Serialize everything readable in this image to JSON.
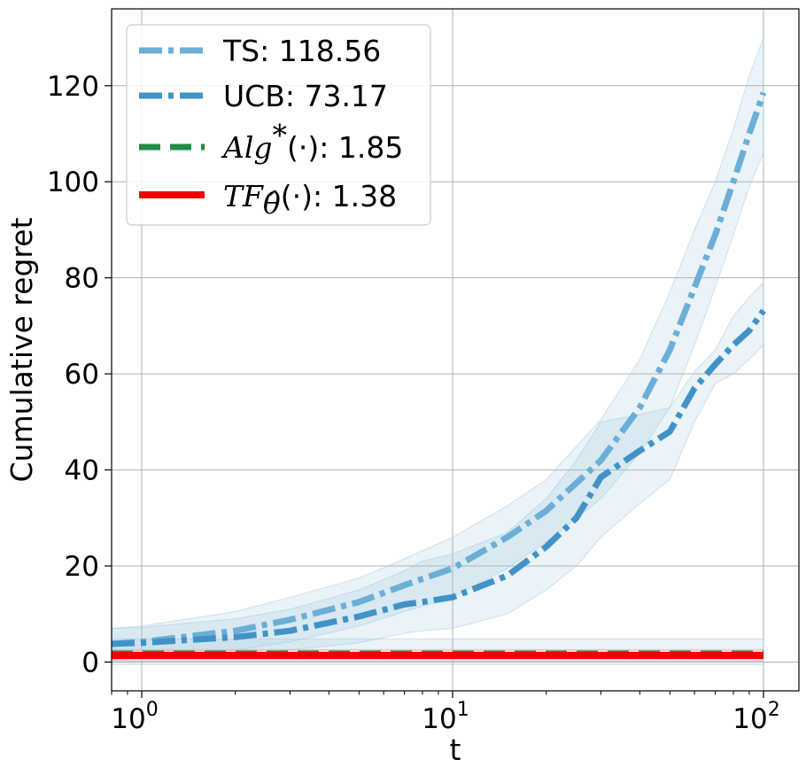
{
  "chart_data": {
    "type": "line",
    "xscale": "log",
    "xlabel": "t",
    "ylabel": "Cumulative regret",
    "xlim": [
      0.8,
      130
    ],
    "ylim": [
      -6,
      136
    ],
    "grid": true,
    "legend_position": "top-left",
    "x_ticks": [
      {
        "value": 1,
        "base": "10",
        "exp": "0"
      },
      {
        "value": 10,
        "base": "10",
        "exp": "1"
      },
      {
        "value": 100,
        "base": "10",
        "exp": "2"
      }
    ],
    "y_ticks": [
      {
        "value": 0,
        "label": "0"
      },
      {
        "value": 20,
        "label": "20"
      },
      {
        "value": 40,
        "label": "40"
      },
      {
        "value": 60,
        "label": "60"
      },
      {
        "value": 80,
        "label": "80"
      },
      {
        "value": 100,
        "label": "100"
      },
      {
        "value": 120,
        "label": "120"
      }
    ],
    "series": [
      {
        "name": "TS",
        "legend_value": ": 118.56",
        "color": "#6baed6",
        "style": "dashdot",
        "x": [
          0.8,
          1,
          2,
          3,
          5,
          7,
          10,
          15,
          20,
          30,
          40,
          50,
          60,
          70,
          80,
          90,
          100
        ],
        "y": [
          3.8,
          4.2,
          6.5,
          8.8,
          12.5,
          16,
          19.5,
          26,
          31.5,
          42,
          53,
          65,
          78,
          89,
          100,
          110,
          118.56
        ],
        "band_upper": [
          7,
          7.5,
          10.5,
          13.5,
          17.5,
          21.5,
          26,
          32.5,
          38,
          50.5,
          63,
          77,
          90,
          100,
          111,
          122,
          130
        ],
        "band_lower": [
          0.5,
          0.8,
          2.5,
          4.2,
          7.5,
          10.5,
          13.5,
          19.5,
          25,
          34,
          43.5,
          53,
          66,
          78,
          89,
          99,
          106
        ]
      },
      {
        "name": "UCB",
        "legend_value": ": 73.17",
        "color": "#4292c6",
        "style": "dashdot",
        "x": [
          0.8,
          1,
          2,
          3,
          5,
          7,
          8,
          10,
          15,
          20,
          25,
          30,
          40,
          50,
          60,
          70,
          80,
          90,
          100
        ],
        "y": [
          3.8,
          4,
          5.2,
          6.5,
          9.5,
          12,
          12.5,
          13.5,
          18,
          24,
          30,
          38.5,
          44,
          48,
          57,
          62,
          66,
          69,
          73.17
        ],
        "band_upper": [
          7,
          7.2,
          9,
          11,
          15,
          19,
          21,
          22.5,
          27,
          34,
          42,
          50,
          51.5,
          53,
          60.5,
          65,
          72,
          76,
          79
        ],
        "band_lower": [
          0.5,
          0.8,
          1.5,
          2.5,
          4,
          6,
          6.5,
          7,
          10,
          15,
          20,
          26,
          33,
          38,
          50,
          58,
          60,
          63,
          66
        ]
      },
      {
        "name": "Alg*(·)",
        "legend_value": ": 1.85",
        "color": "#238b45",
        "style": "dashed",
        "x": [
          0.8,
          100
        ],
        "y": [
          1.85,
          1.85
        ],
        "band_upper": [
          4.8,
          4.8
        ],
        "band_lower": [
          -0.5,
          -0.5
        ]
      },
      {
        "name": "TF(·)",
        "legend_value": ": 1.38",
        "color": "#ee0000",
        "style": "solid",
        "x": [
          0.8,
          100
        ],
        "y": [
          1.38,
          1.38
        ],
        "band_upper": [
          2.6,
          2.6
        ],
        "band_lower": [
          0.1,
          0.1
        ]
      }
    ]
  }
}
